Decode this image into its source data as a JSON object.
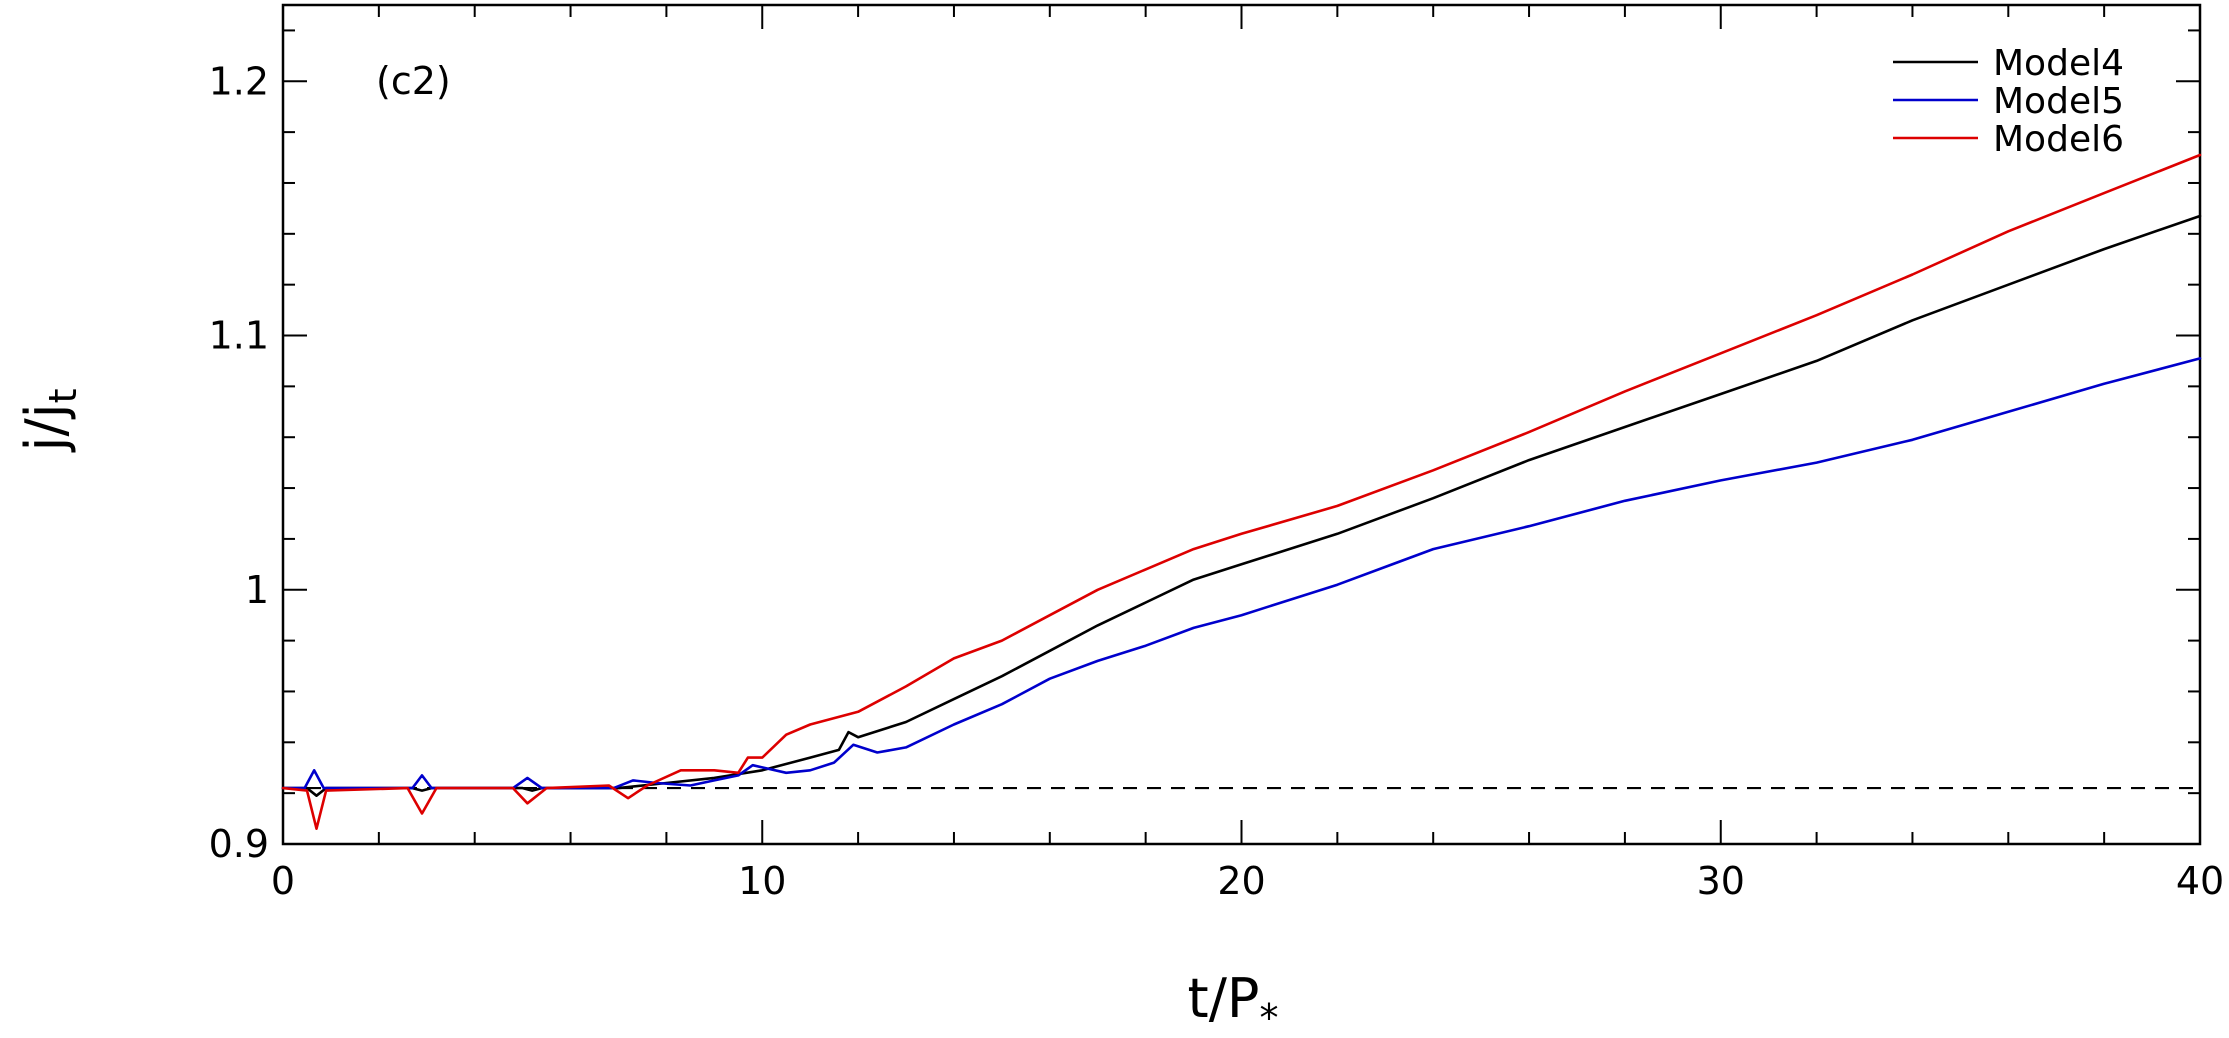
{
  "chart_data": {
    "type": "line",
    "panel_label": "(c2)",
    "xlabel": {
      "main": "t/P",
      "sub": "*"
    },
    "ylabel": {
      "main": "j/j",
      "sub": "t"
    },
    "xlim": [
      0,
      40
    ],
    "ylim": [
      0.9,
      1.23
    ],
    "xticks": [
      0,
      10,
      20,
      30,
      40
    ],
    "xtick_labels": [
      "0",
      "10",
      "20",
      "30",
      "40"
    ],
    "yticks": [
      0.9,
      1.0,
      1.1,
      1.2
    ],
    "ytick_labels": [
      "0.9",
      "1",
      "1.1",
      "1.2"
    ],
    "legend_position": "top-right",
    "grid": false,
    "reference_line": {
      "y": 0.922,
      "style": "dashed",
      "color": "#000000"
    },
    "series": [
      {
        "name": "Model4",
        "color": "#000000",
        "points": [
          [
            0,
            0.922
          ],
          [
            0.5,
            0.922
          ],
          [
            0.7,
            0.919
          ],
          [
            0.9,
            0.922
          ],
          [
            2.7,
            0.922
          ],
          [
            2.9,
            0.921
          ],
          [
            3.1,
            0.922
          ],
          [
            5,
            0.922
          ],
          [
            5.2,
            0.921
          ],
          [
            5.4,
            0.922
          ],
          [
            7,
            0.922
          ],
          [
            8,
            0.924
          ],
          [
            9,
            0.926
          ],
          [
            10,
            0.929
          ],
          [
            11,
            0.934
          ],
          [
            11.6,
            0.937
          ],
          [
            11.8,
            0.944
          ],
          [
            12,
            0.942
          ],
          [
            12.5,
            0.945
          ],
          [
            13,
            0.948
          ],
          [
            14,
            0.957
          ],
          [
            15,
            0.966
          ],
          [
            16,
            0.976
          ],
          [
            17,
            0.986
          ],
          [
            18,
            0.995
          ],
          [
            19,
            1.004
          ],
          [
            20,
            1.01
          ],
          [
            22,
            1.022
          ],
          [
            24,
            1.036
          ],
          [
            26,
            1.051
          ],
          [
            28,
            1.064
          ],
          [
            30,
            1.077
          ],
          [
            32,
            1.09
          ],
          [
            34,
            1.106
          ],
          [
            36,
            1.12
          ],
          [
            38,
            1.134
          ],
          [
            40,
            1.147
          ]
        ]
      },
      {
        "name": "Model5",
        "color": "#0000cc",
        "points": [
          [
            0,
            0.922
          ],
          [
            0.45,
            0.922
          ],
          [
            0.65,
            0.929
          ],
          [
            0.85,
            0.922
          ],
          [
            2.7,
            0.922
          ],
          [
            2.9,
            0.927
          ],
          [
            3.1,
            0.922
          ],
          [
            4.8,
            0.922
          ],
          [
            5.1,
            0.926
          ],
          [
            5.4,
            0.922
          ],
          [
            6.9,
            0.922
          ],
          [
            7.3,
            0.925
          ],
          [
            7.8,
            0.924
          ],
          [
            8.5,
            0.923
          ],
          [
            9,
            0.925
          ],
          [
            9.5,
            0.927
          ],
          [
            9.8,
            0.931
          ],
          [
            10.5,
            0.928
          ],
          [
            11,
            0.929
          ],
          [
            11.5,
            0.932
          ],
          [
            11.9,
            0.939
          ],
          [
            12.4,
            0.936
          ],
          [
            13,
            0.938
          ],
          [
            14,
            0.947
          ],
          [
            15,
            0.955
          ],
          [
            16,
            0.965
          ],
          [
            17,
            0.972
          ],
          [
            18,
            0.978
          ],
          [
            19,
            0.985
          ],
          [
            20,
            0.99
          ],
          [
            22,
            1.002
          ],
          [
            24,
            1.016
          ],
          [
            26,
            1.025
          ],
          [
            28,
            1.035
          ],
          [
            30,
            1.043
          ],
          [
            32,
            1.05
          ],
          [
            34,
            1.059
          ],
          [
            36,
            1.07
          ],
          [
            38,
            1.081
          ],
          [
            40,
            1.091
          ]
        ]
      },
      {
        "name": "Model6",
        "color": "#dd0000",
        "points": [
          [
            0,
            0.922
          ],
          [
            0.5,
            0.921
          ],
          [
            0.7,
            0.906
          ],
          [
            0.9,
            0.921
          ],
          [
            2.6,
            0.922
          ],
          [
            2.9,
            0.912
          ],
          [
            3.2,
            0.922
          ],
          [
            4.8,
            0.922
          ],
          [
            5.1,
            0.916
          ],
          [
            5.5,
            0.922
          ],
          [
            6.8,
            0.923
          ],
          [
            7.2,
            0.918
          ],
          [
            7.6,
            0.923
          ],
          [
            8.3,
            0.929
          ],
          [
            9,
            0.929
          ],
          [
            9.5,
            0.928
          ],
          [
            9.7,
            0.934
          ],
          [
            10,
            0.934
          ],
          [
            10.5,
            0.943
          ],
          [
            11,
            0.947
          ],
          [
            12,
            0.952
          ],
          [
            13,
            0.962
          ],
          [
            14,
            0.973
          ],
          [
            15,
            0.98
          ],
          [
            16,
            0.99
          ],
          [
            17,
            1.0
          ],
          [
            18,
            1.008
          ],
          [
            19,
            1.016
          ],
          [
            20,
            1.022
          ],
          [
            22,
            1.033
          ],
          [
            24,
            1.047
          ],
          [
            26,
            1.062
          ],
          [
            28,
            1.078
          ],
          [
            30,
            1.093
          ],
          [
            32,
            1.108
          ],
          [
            34,
            1.124
          ],
          [
            36,
            1.141
          ],
          [
            38,
            1.156
          ],
          [
            40,
            1.171
          ]
        ]
      }
    ]
  }
}
